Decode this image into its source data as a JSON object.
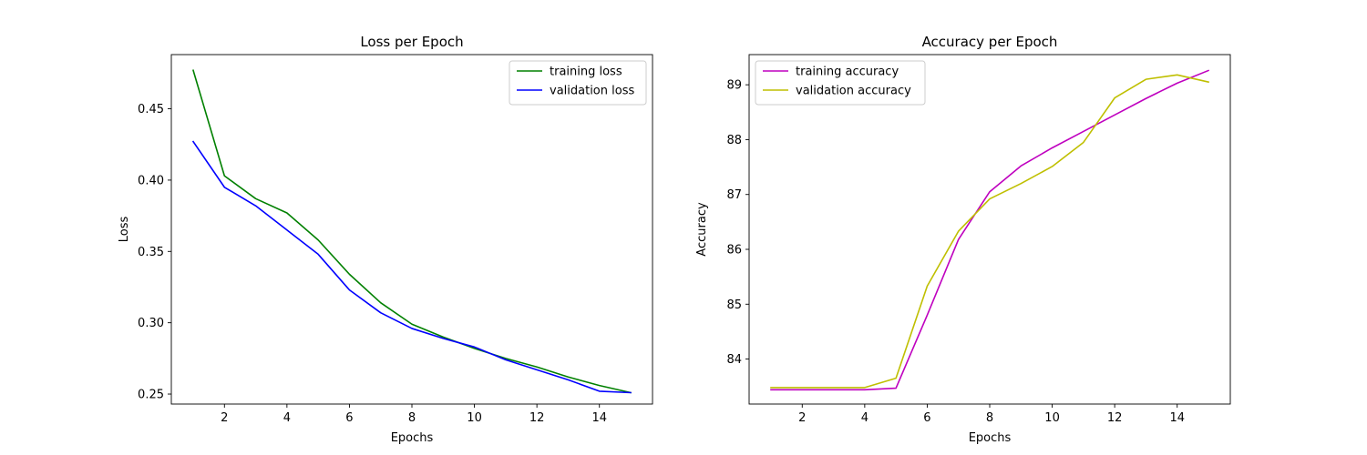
{
  "chart_data": [
    {
      "type": "line",
      "title": "Loss per Epoch",
      "xlabel": "Epochs",
      "ylabel": "Loss",
      "xlim": [
        0.3,
        15.7
      ],
      "ylim": [
        0.243,
        0.488
      ],
      "x_ticks": [
        2,
        4,
        6,
        8,
        10,
        12,
        14
      ],
      "x_tick_labels": [
        "2",
        "4",
        "6",
        "8",
        "10",
        "12",
        "14"
      ],
      "y_ticks": [
        0.25,
        0.3,
        0.35,
        0.4,
        0.45
      ],
      "y_tick_labels": [
        "0.25",
        "0.30",
        "0.35",
        "0.40",
        "0.45"
      ],
      "grid": false,
      "legend_position": "top-right",
      "x": [
        1,
        2,
        3,
        4,
        5,
        6,
        7,
        8,
        9,
        10,
        11,
        12,
        13,
        14,
        15
      ],
      "series": [
        {
          "name": "training loss",
          "color": "#008000",
          "values": [
            0.477,
            0.403,
            0.387,
            0.377,
            0.358,
            0.334,
            0.314,
            0.299,
            0.29,
            0.282,
            0.275,
            0.269,
            0.262,
            0.256,
            0.251
          ]
        },
        {
          "name": "validation loss",
          "color": "#0000ff",
          "values": [
            0.427,
            0.395,
            0.382,
            0.365,
            0.348,
            0.323,
            0.307,
            0.296,
            0.289,
            0.283,
            0.274,
            0.267,
            0.26,
            0.252,
            0.251
          ]
        }
      ]
    },
    {
      "type": "line",
      "title": "Accuracy per Epoch",
      "xlabel": "Epochs",
      "ylabel": "Accuracy",
      "xlim": [
        0.3,
        15.7
      ],
      "ylim": [
        83.18,
        89.55
      ],
      "x_ticks": [
        2,
        4,
        6,
        8,
        10,
        12,
        14
      ],
      "x_tick_labels": [
        "2",
        "4",
        "6",
        "8",
        "10",
        "12",
        "14"
      ],
      "y_ticks": [
        84,
        85,
        86,
        87,
        88,
        89
      ],
      "y_tick_labels": [
        "84",
        "85",
        "86",
        "87",
        "88",
        "89"
      ],
      "grid": false,
      "legend_position": "top-left",
      "x": [
        1,
        2,
        3,
        4,
        5,
        6,
        7,
        8,
        9,
        10,
        11,
        12,
        13,
        14,
        15
      ],
      "series": [
        {
          "name": "training accuracy",
          "color": "#bf00bf",
          "values": [
            83.44,
            83.44,
            83.44,
            83.44,
            83.47,
            84.8,
            86.18,
            87.05,
            87.52,
            87.85,
            88.15,
            88.45,
            88.75,
            89.03,
            89.26
          ]
        },
        {
          "name": "validation accuracy",
          "color": "#bfbf00",
          "values": [
            83.48,
            83.48,
            83.48,
            83.48,
            83.65,
            85.33,
            86.33,
            86.92,
            87.2,
            87.51,
            87.95,
            88.76,
            89.1,
            89.18,
            89.05
          ]
        }
      ]
    }
  ]
}
